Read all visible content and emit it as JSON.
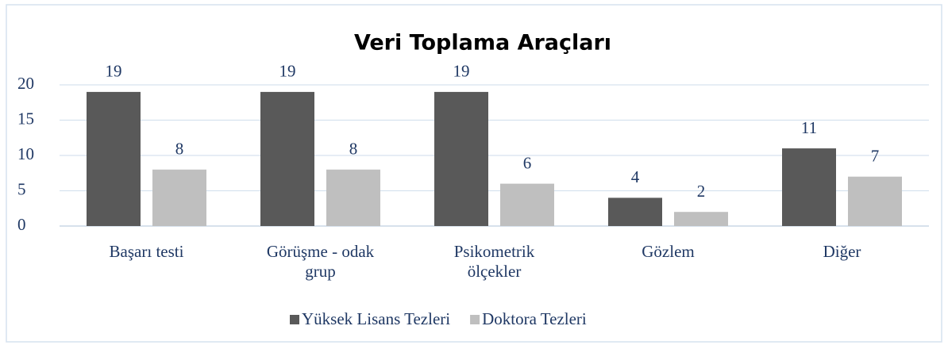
{
  "chart_data": {
    "type": "bar",
    "title": "Veri Toplama Araçları",
    "categories": [
      "Başarı testi",
      "Görüşme - odak grup",
      "Psikometrik ölçekler",
      "Gözlem",
      "Diğer"
    ],
    "series": [
      {
        "name": "Yüksek Lisans Tezleri",
        "color": "#595959",
        "values": [
          19,
          19,
          19,
          4,
          11
        ]
      },
      {
        "name": "Doktora Tezleri",
        "color": "#bfbfbf",
        "values": [
          8,
          8,
          6,
          2,
          7
        ]
      }
    ],
    "ylim": [
      0,
      20
    ],
    "yticks": [
      0,
      5,
      10,
      15,
      20
    ],
    "grid": true,
    "legend": "bottom"
  }
}
